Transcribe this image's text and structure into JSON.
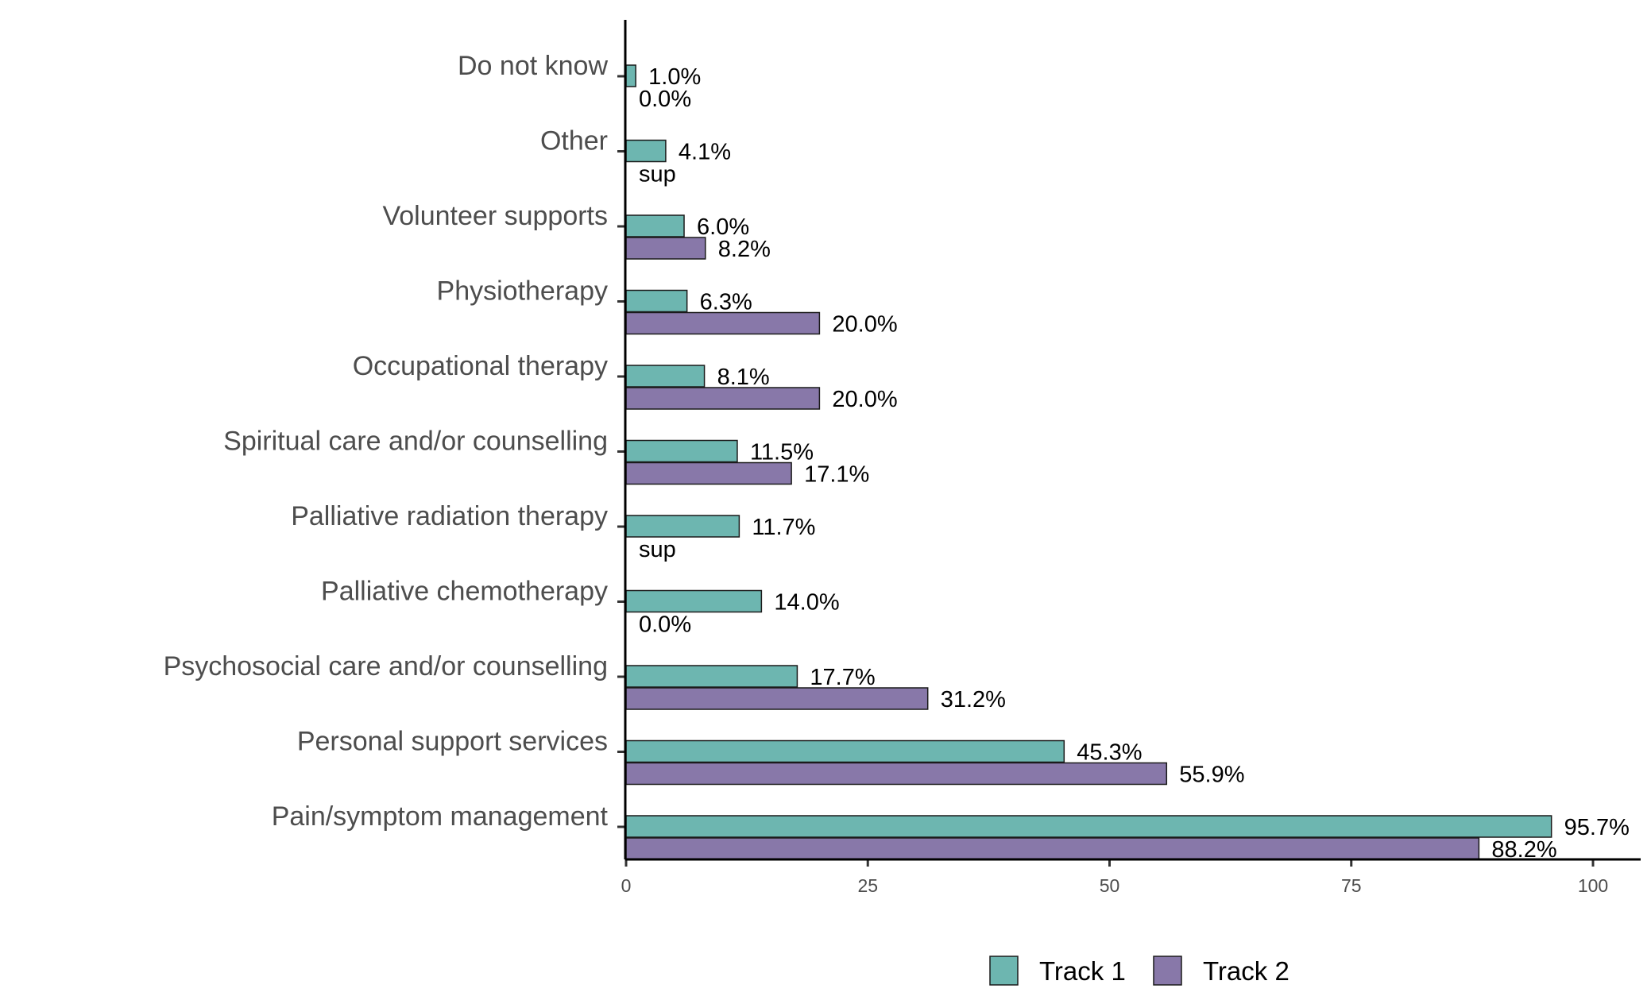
{
  "chart_data": {
    "type": "bar",
    "orientation": "horizontal",
    "title": "",
    "xlabel": "",
    "ylabel": "",
    "xlim": [
      0,
      105
    ],
    "xticks": [
      0,
      25,
      50,
      75,
      100
    ],
    "grid": false,
    "legend_position": "bottom",
    "categories": [
      "Pain/symptom management",
      "Personal support services",
      "Psychosocial care and/or counselling",
      "Palliative chemotherapy",
      "Palliative radiation therapy",
      "Spiritual care and/or counselling",
      "Occupational therapy",
      "Physiotherapy",
      "Volunteer supports",
      "Other",
      "Do not know"
    ],
    "series": [
      {
        "name": "Track 1",
        "color": "#6db6b0",
        "values": [
          95.7,
          45.3,
          17.7,
          14.0,
          11.7,
          11.5,
          8.1,
          6.3,
          6.0,
          4.1,
          1.0
        ],
        "labels": [
          "95.7%",
          "45.3%",
          "17.7%",
          "14.0%",
          "11.7%",
          "11.5%",
          "8.1%",
          "6.3%",
          "6.0%",
          "4.1%",
          "1.0%"
        ]
      },
      {
        "name": "Track 2",
        "color": "#8878a9",
        "values": [
          88.2,
          55.9,
          31.2,
          0.0,
          null,
          17.1,
          20.0,
          20.0,
          8.2,
          null,
          0.0
        ],
        "labels": [
          "88.2%",
          "55.9%",
          "31.2%",
          "0.0%",
          "sup",
          "17.1%",
          "20.0%",
          "20.0%",
          "8.2%",
          "sup",
          "0.0%"
        ]
      }
    ]
  }
}
